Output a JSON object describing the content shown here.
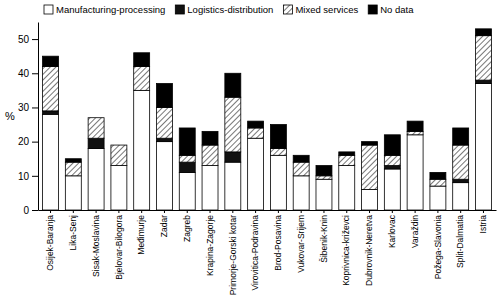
{
  "chart_data": {
    "type": "bar",
    "stacked": true,
    "y_label": "%",
    "categories": [
      "Osijek-Baranja",
      "Lika-Senj",
      "Sisak-Moslavina",
      "Bjelovar-Bilogora",
      "Međimurje",
      "Zadar",
      "Zagreb",
      "Krapina-Zagorje",
      "Primorje-Gorski kotar",
      "Virovitica-Podravina",
      "Brod-Posavina",
      "Vukovar-Srijem",
      "Šibenik-Knin",
      "Koprivnica-križevci",
      "Dubrovnik-Neretva",
      "Karlovac",
      "Varaždin",
      "Požega-Slavonia",
      "Split-Dalmatia",
      "Istria"
    ],
    "series": [
      {
        "name": "Manufacturing-processing",
        "color": "#ffffff",
        "values": [
          28,
          10,
          18,
          13,
          35,
          20,
          11,
          13,
          14,
          21,
          16,
          10,
          9,
          13,
          6,
          12,
          22,
          7,
          8,
          37
        ]
      },
      {
        "name": "Logistics-distribution",
        "color": "#111111",
        "values": [
          1,
          0,
          3,
          0,
          0,
          1,
          3,
          0,
          3,
          0,
          0,
          0,
          0,
          0,
          0,
          1,
          0,
          0,
          1,
          1
        ]
      },
      {
        "name": "Mixed services",
        "color": "#555555",
        "values": [
          13,
          4,
          6,
          6,
          7,
          9,
          2,
          6,
          16,
          3,
          2,
          4,
          1,
          3,
          13,
          3,
          1,
          2,
          10,
          13
        ]
      },
      {
        "name": "No data",
        "color": "#000000",
        "values": [
          3,
          1,
          0,
          0,
          4,
          7,
          8,
          4,
          7,
          2,
          7,
          2,
          3,
          1,
          1,
          6,
          3,
          2,
          5,
          2
        ]
      }
    ],
    "ylim": [
      0,
      55
    ],
    "yticks": [
      0,
      10,
      20,
      30,
      40,
      50
    ],
    "legend": "top"
  }
}
